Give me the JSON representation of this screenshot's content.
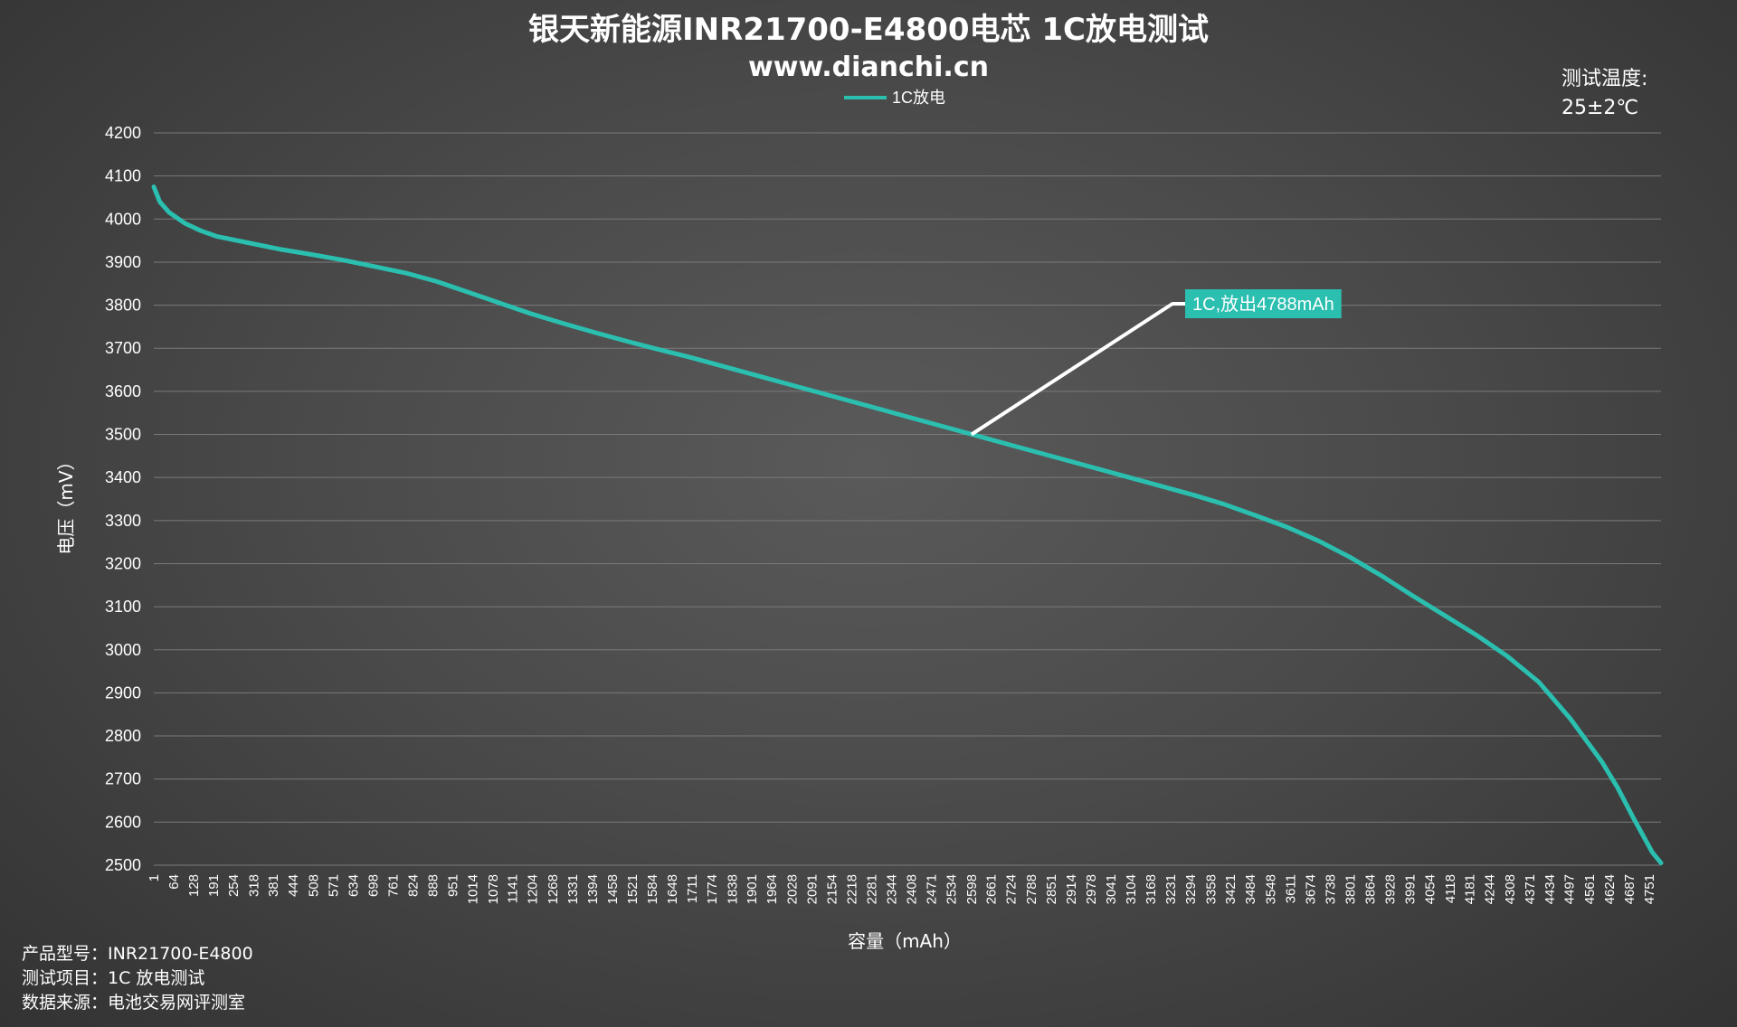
{
  "chart_data": {
    "type": "line",
    "title": "银天新能源INR21700-E4800电芯 1C放电测试",
    "subtitle": "www.dianchi.cn",
    "xlabel": "容量（mAh）",
    "ylabel": "电压（mV）",
    "ylim": [
      2500,
      4200
    ],
    "y_ticks": [
      2500,
      2600,
      2700,
      2800,
      2900,
      3000,
      3100,
      3200,
      3300,
      3400,
      3500,
      3600,
      3700,
      3800,
      3900,
      4000,
      4100,
      4200
    ],
    "x_range": [
      1,
      4788
    ],
    "x_ticks": [
      1,
      64,
      128,
      191,
      254,
      318,
      381,
      444,
      508,
      571,
      634,
      698,
      761,
      824,
      888,
      951,
      1014,
      1078,
      1141,
      1204,
      1268,
      1331,
      1394,
      1458,
      1521,
      1584,
      1648,
      1711,
      1774,
      1838,
      1901,
      1964,
      2028,
      2091,
      2154,
      2218,
      2281,
      2344,
      2408,
      2471,
      2534,
      2598,
      2661,
      2724,
      2788,
      2851,
      2914,
      2978,
      3041,
      3104,
      3168,
      3231,
      3294,
      3358,
      3421,
      3484,
      3548,
      3611,
      3674,
      3738,
      3801,
      3864,
      3928,
      3991,
      4054,
      4118,
      4181,
      4244,
      4308,
      4371,
      4434,
      4497,
      4561,
      4624,
      4687,
      4751
    ],
    "grid": true,
    "legend_position": "top",
    "series": [
      {
        "name": "1C放电",
        "color": "#2bbfb0",
        "x": [
          1,
          20,
          50,
          100,
          150,
          200,
          300,
          400,
          500,
          600,
          700,
          800,
          900,
          1000,
          1100,
          1200,
          1300,
          1400,
          1500,
          1600,
          1700,
          1800,
          1900,
          2000,
          2100,
          2200,
          2300,
          2400,
          2500,
          2600,
          2650,
          2700,
          2800,
          2900,
          3000,
          3100,
          3200,
          3300,
          3400,
          3500,
          3600,
          3700,
          3800,
          3900,
          4000,
          4100,
          4200,
          4300,
          4400,
          4500,
          4550,
          4600,
          4650,
          4700,
          4730,
          4760,
          4788
        ],
        "y": [
          4075,
          4040,
          4015,
          3990,
          3973,
          3960,
          3945,
          3930,
          3918,
          3905,
          3890,
          3875,
          3855,
          3830,
          3805,
          3780,
          3758,
          3737,
          3717,
          3698,
          3680,
          3660,
          3640,
          3620,
          3600,
          3580,
          3560,
          3540,
          3520,
          3500,
          3490,
          3480,
          3460,
          3440,
          3420,
          3400,
          3380,
          3360,
          3338,
          3312,
          3285,
          3253,
          3215,
          3172,
          3125,
          3080,
          3035,
          2985,
          2925,
          2840,
          2790,
          2740,
          2680,
          2610,
          2570,
          2530,
          2505
        ]
      }
    ],
    "annotation": {
      "text": "1C,放出4788mAh",
      "point_x": 2598,
      "point_y": 3500,
      "box_color": "#2bbfb0"
    }
  },
  "notes": {
    "temp_label": "测试温度:",
    "temp_value": "25±2℃",
    "model": "产品型号：INR21700-E4800",
    "test_item": "测试项目：1C 放电测试",
    "source": "数据来源：电池交易网评测室"
  }
}
